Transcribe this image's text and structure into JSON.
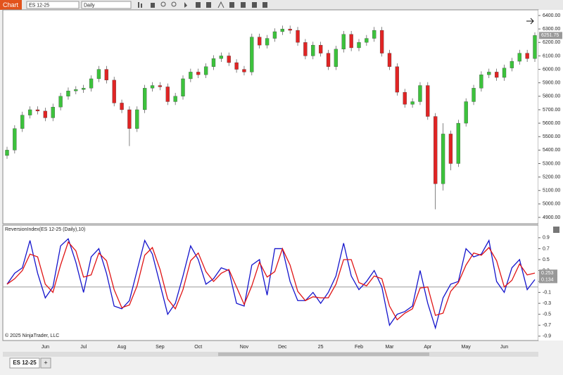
{
  "toolbar": {
    "tab": "Chart",
    "instrument": "ES 12-25",
    "interval": "Daily"
  },
  "copyright": "© 2025 NinjaTrader, LLC",
  "tabs": [
    "ES 12-25"
  ],
  "add_tab": "+",
  "chart_data": [
    {
      "type": "candlestick",
      "up_color": "#3cc23c",
      "down_color": "#e02424",
      "categories": [
        null,
        null,
        null,
        null,
        null,
        "Jun",
        null,
        null,
        null,
        null,
        "Jul",
        null,
        null,
        null,
        null,
        "Aug",
        null,
        null,
        null,
        null,
        "Sep",
        null,
        null,
        null,
        null,
        "Oct",
        null,
        null,
        null,
        null,
        null,
        "Nov",
        null,
        null,
        null,
        null,
        "Dec",
        null,
        null,
        null,
        null,
        "25",
        null,
        null,
        null,
        null,
        "Feb",
        null,
        null,
        null,
        "Mar",
        null,
        null,
        null,
        null,
        "Apr",
        null,
        null,
        null,
        null,
        "May",
        null,
        null,
        null,
        null,
        "Jun",
        null,
        null,
        null,
        null
      ],
      "open": [
        5360,
        5400,
        5560,
        5660,
        5700,
        5690,
        5640,
        5720,
        5800,
        5840,
        5850,
        5860,
        5930,
        6000,
        5920,
        5750,
        5700,
        5560,
        5700,
        5860,
        5880,
        5870,
        5760,
        5800,
        5930,
        5980,
        5960,
        6020,
        6080,
        6100,
        6050,
        6000,
        5980,
        6240,
        6180,
        6230,
        6280,
        6300,
        6290,
        6200,
        6100,
        6180,
        6120,
        6020,
        6150,
        6260,
        6160,
        6200,
        6230,
        6290,
        6120,
        6020,
        5830,
        5740,
        5760,
        5880,
        5650,
        5150,
        5520,
        5300,
        5600,
        5760,
        5860,
        5960,
        5980,
        5940,
        6010,
        6060,
        6120,
        6080
      ],
      "high": [
        5425,
        5585,
        5685,
        5725,
        5725,
        5715,
        5745,
        5825,
        5865,
        5875,
        5885,
        5955,
        6025,
        6025,
        5945,
        5775,
        5725,
        5725,
        5885,
        5905,
        5905,
        5895,
        5825,
        5955,
        6005,
        6005,
        6045,
        6105,
        6125,
        6125,
        6075,
        6025,
        6265,
        6265,
        6255,
        6305,
        6325,
        6325,
        6315,
        6225,
        6205,
        6205,
        6145,
        6175,
        6285,
        6285,
        6225,
        6255,
        6315,
        6315,
        6145,
        6045,
        5855,
        5785,
        5905,
        5905,
        5675,
        5600,
        5545,
        5625,
        5785,
        5885,
        5985,
        6005,
        6005,
        6035,
        6085,
        6145,
        6145,
        6275
      ],
      "low": [
        5335,
        5375,
        5535,
        5635,
        5665,
        5615,
        5615,
        5695,
        5775,
        5815,
        5825,
        5835,
        5905,
        5895,
        5725,
        5675,
        5430,
        5535,
        5675,
        5835,
        5845,
        5735,
        5735,
        5775,
        5905,
        5935,
        5935,
        5995,
        6055,
        6025,
        5975,
        5955,
        5955,
        6155,
        6155,
        6205,
        6255,
        6265,
        6175,
        6075,
        6075,
        6095,
        5995,
        5995,
        6125,
        6135,
        6135,
        6175,
        6205,
        6095,
        5995,
        5805,
        5715,
        5715,
        5735,
        5625,
        4960,
        5100,
        5250,
        5275,
        5575,
        5735,
        5835,
        5935,
        5915,
        5915,
        5985,
        6035,
        6055,
        6055
      ],
      "close": [
        5400,
        5560,
        5660,
        5700,
        5690,
        5640,
        5720,
        5800,
        5840,
        5850,
        5860,
        5930,
        6000,
        5920,
        5750,
        5700,
        5560,
        5700,
        5860,
        5880,
        5870,
        5760,
        5800,
        5930,
        5980,
        5960,
        6020,
        6080,
        6100,
        6050,
        6000,
        5980,
        6240,
        6180,
        6230,
        6280,
        6300,
        6290,
        6200,
        6100,
        6180,
        6120,
        6020,
        6150,
        6260,
        6160,
        6200,
        6230,
        6290,
        6120,
        6020,
        5830,
        5740,
        5760,
        5880,
        5650,
        5150,
        5520,
        5300,
        5600,
        5760,
        5860,
        5960,
        5980,
        5940,
        6010,
        6060,
        6120,
        6080,
        6251.75
      ],
      "ylim": [
        4853,
        6442
      ],
      "yticks": [
        {
          "value": 4900,
          "label": "4900.00"
        },
        {
          "value": 5000,
          "label": "5000.00"
        },
        {
          "value": 5100,
          "label": "5100.00"
        },
        {
          "value": 5200,
          "label": "5200.00"
        },
        {
          "value": 5300,
          "label": "5300.00"
        },
        {
          "value": 5400,
          "label": "5400.00"
        },
        {
          "value": 5500,
          "label": "5500.00"
        },
        {
          "value": 5600,
          "label": "5600.00"
        },
        {
          "value": 5700,
          "label": "5700.00"
        },
        {
          "value": 5800,
          "label": "5800.00"
        },
        {
          "value": 5900,
          "label": "5900.00"
        },
        {
          "value": 6000,
          "label": "6000.00"
        },
        {
          "value": 6100,
          "label": "6100.00"
        },
        {
          "value": 6200,
          "label": "6200.00"
        },
        {
          "value": 6300,
          "label": "6300.00"
        },
        {
          "value": 6400,
          "label": "6400.00"
        }
      ]
    },
    {
      "type": "line",
      "title": "ReversionIndex(ES 12-25 (Daily),10)",
      "reference_line": 0,
      "ylim": [
        -0.98,
        1.13
      ],
      "yticks": [
        0.9,
        0.7,
        0.5,
        0.3,
        0.1,
        -0.1,
        -0.3,
        -0.5,
        -0.7,
        -0.9
      ],
      "series": [
        {
          "color": "#1414cc",
          "values": [
            0.05,
            0.25,
            0.35,
            0.85,
            0.25,
            -0.2,
            0.0,
            0.75,
            0.88,
            0.45,
            -0.1,
            0.55,
            0.7,
            0.25,
            -0.35,
            -0.4,
            -0.25,
            0.3,
            0.85,
            0.6,
            0.05,
            -0.5,
            -0.3,
            0.2,
            0.75,
            0.5,
            0.05,
            0.15,
            0.35,
            0.3,
            -0.3,
            -0.35,
            0.4,
            0.5,
            -0.15,
            0.7,
            0.7,
            0.1,
            -0.25,
            -0.25,
            -0.1,
            -0.3,
            -0.1,
            0.2,
            0.8,
            0.2,
            -0.05,
            0.1,
            0.3,
            0.0,
            -0.7,
            -0.5,
            -0.45,
            -0.35,
            0.3,
            -0.3,
            -0.75,
            -0.2,
            0.05,
            0.1,
            0.7,
            0.55,
            0.6,
            0.85,
            0.1,
            -0.1,
            0.35,
            0.5,
            -0.05,
            0.134
          ]
        },
        {
          "color": "#e01414",
          "values": [
            0.05,
            0.15,
            0.3,
            0.6,
            0.55,
            0.05,
            -0.1,
            0.4,
            0.82,
            0.66,
            0.18,
            0.22,
            0.62,
            0.48,
            -0.05,
            -0.38,
            -0.33,
            0.02,
            0.58,
            0.72,
            0.32,
            -0.22,
            -0.4,
            -0.05,
            0.48,
            0.62,
            0.28,
            0.1,
            0.25,
            0.32,
            0.0,
            -0.32,
            0.02,
            0.45,
            0.18,
            0.28,
            0.7,
            0.4,
            -0.08,
            -0.25,
            -0.18,
            -0.2,
            -0.2,
            0.05,
            0.5,
            0.5,
            0.08,
            0.02,
            0.2,
            0.15,
            -0.35,
            -0.6,
            -0.48,
            -0.4,
            -0.02,
            0.0,
            -0.52,
            -0.48,
            -0.08,
            0.08,
            0.4,
            0.62,
            0.58,
            0.72,
            0.48,
            0.0,
            0.12,
            0.42,
            0.22,
            0.253
          ]
        }
      ]
    }
  ]
}
